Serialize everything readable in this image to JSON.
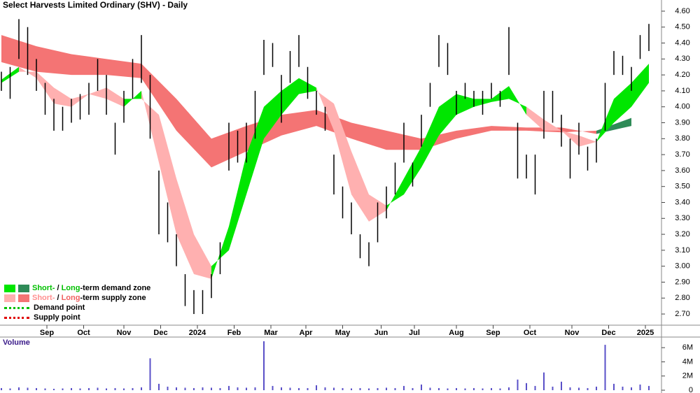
{
  "chart_data": {
    "type": "ohlc",
    "title": "Select Harvests Limited Ordinary (SHV) - Daily",
    "x": [
      0,
      5,
      10,
      15,
      20,
      25,
      30,
      35,
      40,
      45,
      50,
      55,
      60,
      65,
      70,
      75,
      80,
      85,
      90,
      95,
      100,
      105,
      110,
      115,
      120,
      125,
      130,
      135,
      140,
      145,
      150,
      155,
      160,
      165,
      170,
      175,
      180,
      185,
      190,
      195,
      200,
      205,
      210,
      215,
      220,
      225,
      230,
      235,
      240,
      245,
      250,
      255,
      260,
      265,
      270,
      275,
      280,
      285,
      290,
      295,
      300,
      305,
      310,
      315,
      320,
      325,
      330,
      335,
      340,
      345,
      350,
      355,
      360,
      365,
      370
    ],
    "high": [
      4.22,
      4.25,
      4.55,
      4.5,
      4.3,
      4.15,
      4.05,
      4.0,
      4.05,
      4.08,
      4.15,
      4.3,
      4.2,
      3.9,
      4.1,
      4.3,
      4.45,
      4.2,
      3.6,
      3.4,
      3.2,
      2.95,
      2.85,
      2.85,
      2.95,
      3.15,
      3.9,
      3.85,
      3.9,
      4.1,
      4.42,
      4.4,
      4.2,
      4.35,
      4.45,
      4.25,
      4.1,
      4.0,
      3.7,
      3.5,
      3.4,
      3.2,
      3.15,
      3.4,
      3.5,
      3.65,
      3.9,
      3.65,
      3.95,
      4.15,
      4.45,
      4.4,
      4.1,
      4.15,
      4.1,
      4.1,
      4.15,
      4.1,
      4.5,
      3.9,
      3.7,
      3.7,
      4.1,
      4.1,
      3.95,
      3.8,
      3.9,
      3.75,
      3.8,
      4.15,
      4.35,
      4.32,
      4.25,
      4.45,
      4.52
    ],
    "low": [
      4.1,
      4.05,
      4.3,
      4.2,
      4.1,
      3.95,
      3.85,
      3.85,
      3.9,
      3.92,
      3.95,
      4.1,
      3.95,
      3.7,
      3.9,
      4.05,
      4.15,
      3.8,
      3.2,
      3.15,
      3.0,
      2.75,
      2.7,
      2.7,
      2.8,
      2.95,
      3.6,
      3.65,
      3.65,
      3.8,
      4.2,
      4.25,
      3.9,
      4.15,
      4.25,
      4.05,
      3.95,
      3.85,
      3.45,
      3.3,
      3.2,
      3.05,
      3.0,
      3.15,
      3.3,
      3.45,
      3.65,
      3.5,
      3.75,
      4.0,
      4.25,
      4.2,
      3.95,
      4.05,
      4.0,
      3.95,
      4.05,
      4.0,
      4.2,
      3.55,
      3.55,
      3.45,
      3.8,
      3.9,
      3.75,
      3.55,
      3.7,
      3.6,
      3.65,
      3.85,
      4.2,
      4.2,
      4.1,
      4.3,
      4.35
    ],
    "bar_color": "#000000",
    "bands": [
      {
        "x": [
          0,
          20,
          40,
          60,
          80,
          100,
          120,
          140,
          160,
          180,
          200,
          220,
          240,
          260,
          280,
          300,
          320,
          340,
          360
        ],
        "fast": [
          4.28,
          4.22,
          4.2,
          4.2,
          4.18,
          3.85,
          3.62,
          3.72,
          3.82,
          3.88,
          3.8,
          3.73,
          3.73,
          3.8,
          3.85,
          3.85,
          3.84,
          3.85,
          3.93
        ],
        "slow": [
          4.45,
          4.38,
          4.33,
          4.3,
          4.27,
          4.05,
          3.8,
          3.88,
          3.95,
          3.98,
          3.9,
          3.85,
          3.8,
          3.85,
          3.88,
          3.87,
          3.87,
          3.83,
          3.88
        ],
        "demand_color": "#2e8b57",
        "supply_color": "#f47474"
      },
      {
        "x": [
          0,
          10,
          20,
          30,
          40,
          50,
          60,
          70,
          80,
          90,
          100,
          110,
          120,
          130,
          140,
          150,
          160,
          170,
          180,
          190,
          200,
          210,
          220,
          230,
          240,
          250,
          260,
          270,
          280,
          290,
          300,
          310,
          320,
          330,
          340,
          350,
          360,
          370
        ],
        "fast": [
          4.17,
          4.25,
          4.18,
          4.02,
          4.0,
          4.08,
          4.05,
          4.0,
          4.1,
          3.65,
          3.2,
          2.95,
          2.92,
          3.25,
          3.7,
          4.0,
          4.1,
          4.18,
          4.12,
          3.85,
          3.45,
          3.28,
          3.35,
          3.55,
          3.75,
          4.0,
          4.08,
          4.05,
          4.05,
          4.13,
          3.95,
          3.85,
          3.85,
          3.75,
          3.78,
          4.05,
          4.15,
          4.27
        ],
        "slow": [
          4.15,
          4.22,
          4.22,
          4.12,
          4.05,
          4.08,
          4.12,
          4.05,
          4.05,
          3.95,
          3.55,
          3.2,
          3.0,
          3.1,
          3.45,
          3.8,
          3.95,
          4.08,
          4.1,
          4.02,
          3.72,
          3.45,
          3.38,
          3.45,
          3.62,
          3.82,
          3.95,
          4.0,
          4.03,
          4.05,
          4.0,
          3.92,
          3.85,
          3.82,
          3.78,
          3.9,
          4.0,
          4.15
        ],
        "demand_color": "#00e600",
        "supply_color": "#ffb0b0"
      }
    ],
    "xlim": [
      0,
      376
    ],
    "xticks": [
      {
        "value": 26,
        "label": "Sep"
      },
      {
        "value": 47,
        "label": "Oct"
      },
      {
        "value": 70,
        "label": "Nov"
      },
      {
        "value": 91,
        "label": "Dec"
      },
      {
        "value": 112,
        "label": "2024"
      },
      {
        "value": 133,
        "label": "Feb"
      },
      {
        "value": 154,
        "label": "Mar"
      },
      {
        "value": 174,
        "label": "Apr"
      },
      {
        "value": 195,
        "label": "May"
      },
      {
        "value": 217,
        "label": "Jun"
      },
      {
        "value": 236,
        "label": "Jul"
      },
      {
        "value": 260,
        "label": "Aug"
      },
      {
        "value": 281,
        "label": "Sep"
      },
      {
        "value": 302,
        "label": "Oct"
      },
      {
        "value": 326,
        "label": "Nov"
      },
      {
        "value": 347,
        "label": "Dec"
      },
      {
        "value": 368,
        "label": "2025"
      }
    ],
    "ylim": [
      2.63,
      4.67
    ],
    "yticks": [
      {
        "value": 2.7,
        "label": "2.70"
      },
      {
        "value": 2.8,
        "label": "2.80"
      },
      {
        "value": 2.9,
        "label": "2.90"
      },
      {
        "value": 3.0,
        "label": "3.00"
      },
      {
        "value": 3.1,
        "label": "3.10"
      },
      {
        "value": 3.2,
        "label": "3.20"
      },
      {
        "value": 3.3,
        "label": "3.30"
      },
      {
        "value": 3.4,
        "label": "3.40"
      },
      {
        "value": 3.5,
        "label": "3.50"
      },
      {
        "value": 3.6,
        "label": "3.60"
      },
      {
        "value": 3.7,
        "label": "3.70"
      },
      {
        "value": 3.8,
        "label": "3.80"
      },
      {
        "value": 3.9,
        "label": "3.90"
      },
      {
        "value": 4.0,
        "label": "4.00"
      },
      {
        "value": 4.1,
        "label": "4.10"
      },
      {
        "value": 4.2,
        "label": "4.20"
      },
      {
        "value": 4.3,
        "label": "4.30"
      },
      {
        "value": 4.4,
        "label": "4.40"
      },
      {
        "value": 4.5,
        "label": "4.50"
      },
      {
        "value": 4.6,
        "label": "4.60"
      }
    ],
    "legend": [
      {
        "swatches": [
          "#00e600",
          "#2e8b57"
        ],
        "parts": [
          {
            "text": "Short-",
            "color": "#00c000"
          },
          {
            "text": " / ",
            "color": "#000000"
          },
          {
            "text": "Long",
            "color": "#00c000"
          },
          {
            "text": "-term demand zone",
            "color": "#000000"
          }
        ]
      },
      {
        "swatches": [
          "#ffb0b0",
          "#f47474"
        ],
        "parts": [
          {
            "text": "Short-",
            "color": "#ff9090"
          },
          {
            "text": " / ",
            "color": "#000000"
          },
          {
            "text": "Long",
            "color": "#f06060"
          },
          {
            "text": "-term supply zone",
            "color": "#000000"
          }
        ]
      },
      {
        "dotted": "#00c000",
        "parts": [
          {
            "text": "Demand point",
            "color": "#000000"
          }
        ]
      },
      {
        "dotted": "#e00000",
        "parts": [
          {
            "text": "Supply point",
            "color": "#000000"
          }
        ]
      }
    ],
    "volume": {
      "label": "Volume",
      "color": "#5a50c8",
      "values": [
        300000,
        250000,
        400000,
        350000,
        300000,
        250000,
        200000,
        250000,
        300000,
        250000,
        300000,
        350000,
        250000,
        300000,
        250000,
        300000,
        400000,
        4500000,
        900000,
        500000,
        400000,
        350000,
        300000,
        400000,
        350000,
        300000,
        600000,
        400000,
        350000,
        400000,
        6900000,
        600000,
        400000,
        350000,
        300000,
        300000,
        700000,
        400000,
        350000,
        300000,
        250000,
        300000,
        250000,
        300000,
        350000,
        300000,
        600000,
        300000,
        800000,
        350000,
        300000,
        250000,
        300000,
        250000,
        300000,
        250000,
        300000,
        250000,
        400000,
        1500000,
        1000000,
        600000,
        2500000,
        500000,
        1200000,
        400000,
        350000,
        300000,
        500000,
        6400000,
        900000,
        500000,
        400000,
        800000,
        600000
      ],
      "ylim": [
        0,
        7000000
      ],
      "yticks": [
        0,
        {
          "value": 2000000,
          "label": "2M"
        },
        {
          "value": 4000000,
          "label": "4M"
        },
        {
          "value": 6000000,
          "label": "6M"
        }
      ]
    }
  }
}
